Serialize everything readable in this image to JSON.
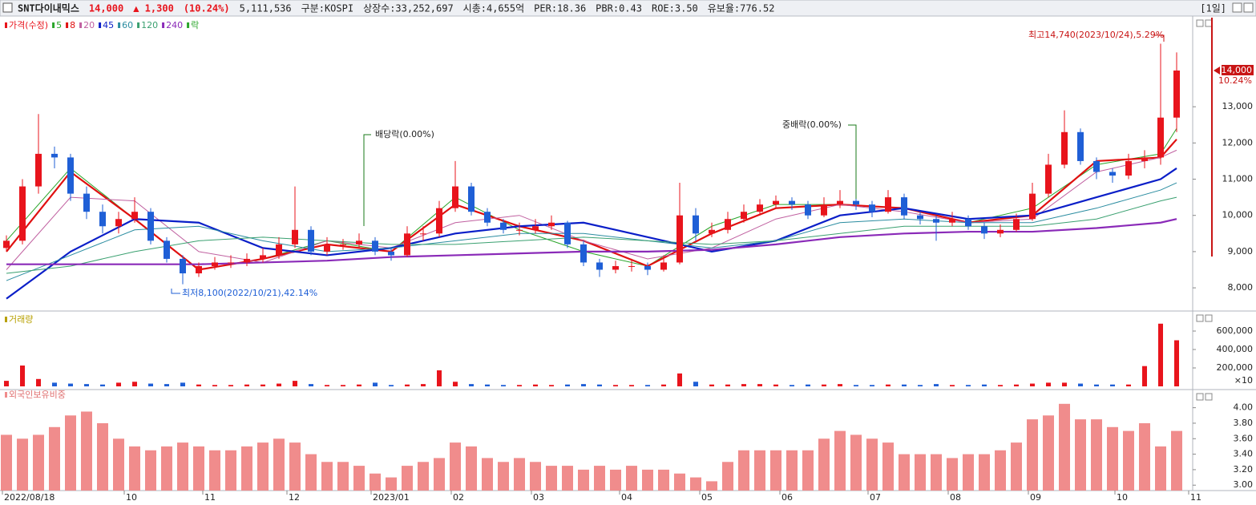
{
  "header": {
    "name": "SNT다이내믹스",
    "price": "14,000",
    "change": "▲ 1,300",
    "change_pct": "(10.24%)",
    "volume": "5,111,536",
    "market": "구분:KOSPI",
    "shares": "상장수:33,252,697",
    "cap": "시총:4,655억",
    "per": "PER:18.36",
    "pbr": "PBR:0.43",
    "roe": "ROE:3.50",
    "reserve": "유보율:776.52",
    "period": "[1일]"
  },
  "chart_data": {
    "type": "candlestick",
    "price_label": "가격(수정)",
    "ex_label": "락",
    "up_color": "#e8141c",
    "down_color": "#1f5fd6",
    "ylim": [
      7360,
      15460
    ],
    "yticks": [
      {
        "value": 8000,
        "label": "8,000"
      },
      {
        "value": 9000,
        "label": "9,000"
      },
      {
        "value": 10000,
        "label": "10,000"
      },
      {
        "value": 11000,
        "label": "11,000"
      },
      {
        "value": 12000,
        "label": "12,000"
      },
      {
        "value": 13000,
        "label": "13,000"
      }
    ],
    "xticks": [
      {
        "value": 0,
        "label": "2022/08/18"
      },
      {
        "value": 7.6,
        "label": "10"
      },
      {
        "value": 12.5,
        "label": "11"
      },
      {
        "value": 17.75,
        "label": "12"
      },
      {
        "value": 23,
        "label": "2023/01"
      },
      {
        "value": 28,
        "label": "02"
      },
      {
        "value": 33,
        "label": "03"
      },
      {
        "value": 38.5,
        "label": "04"
      },
      {
        "value": 43.5,
        "label": "05"
      },
      {
        "value": 48.5,
        "label": "06"
      },
      {
        "value": 54,
        "label": "07"
      },
      {
        "value": 59,
        "label": "08"
      },
      {
        "value": 64,
        "label": "09"
      },
      {
        "value": 69.4,
        "label": "10"
      },
      {
        "value": 74,
        "label": "11"
      }
    ],
    "open": [
      9100,
      9300,
      10800,
      11700,
      11600,
      10600,
      10100,
      9700,
      9900,
      10100,
      9300,
      8800,
      8400,
      8600,
      8700,
      8700,
      8800,
      8900,
      9200,
      9600,
      9000,
      9200,
      9200,
      9300,
      9000,
      8900,
      9500,
      9500,
      10200,
      10800,
      10100,
      9800,
      9600,
      9600,
      9700,
      9800,
      9200,
      8700,
      8500,
      8600,
      8600,
      8500,
      8700,
      10000,
      9500,
      9600,
      9900,
      10100,
      10300,
      10400,
      10300,
      10000,
      10300,
      10400,
      10300,
      10100,
      10500,
      10000,
      9900,
      9800,
      9900,
      9700,
      9500,
      9600,
      9900,
      10600,
      11400,
      12300,
      11500,
      11200,
      11100,
      11500,
      11600,
      12700
    ],
    "high": [
      9450,
      11000,
      12800,
      11900,
      11700,
      10800,
      10300,
      10100,
      10500,
      10200,
      9400,
      8900,
      8700,
      8850,
      8900,
      8950,
      9100,
      9400,
      10800,
      9700,
      9400,
      9350,
      9500,
      9400,
      9100,
      9700,
      9700,
      10400,
      11500,
      10900,
      10200,
      9900,
      9800,
      9900,
      10000,
      9850,
      9300,
      8800,
      8750,
      8800,
      8700,
      8900,
      10900,
      10200,
      9800,
      10100,
      10300,
      10450,
      10550,
      10500,
      10400,
      10500,
      10700,
      10500,
      10400,
      10700,
      10600,
      10100,
      10000,
      10100,
      10000,
      9800,
      9750,
      10050,
      10900,
      11700,
      12900,
      12400,
      11600,
      11300,
      11700,
      11800,
      14740,
      14500
    ],
    "low": [
      9000,
      9200,
      10600,
      11300,
      10400,
      9900,
      9500,
      9500,
      9800,
      9200,
      8700,
      8100,
      8300,
      8500,
      8550,
      8600,
      8700,
      8800,
      9100,
      8900,
      8900,
      9050,
      9100,
      8900,
      8750,
      8850,
      9300,
      9400,
      10100,
      10000,
      9700,
      9500,
      9450,
      9500,
      9600,
      9100,
      8600,
      8300,
      8400,
      8450,
      8350,
      8450,
      8650,
      9300,
      9400,
      9500,
      9800,
      10000,
      10200,
      10150,
      9900,
      9950,
      10200,
      10150,
      9950,
      10050,
      9900,
      9750,
      9300,
      9700,
      9600,
      9350,
      9400,
      9550,
      9850,
      10500,
      11300,
      11400,
      11000,
      10900,
      11000,
      11300,
      11400,
      12300
    ],
    "close": [
      9300,
      10800,
      11700,
      11600,
      10600,
      10100,
      9700,
      9900,
      10100,
      9300,
      8800,
      8400,
      8600,
      8700,
      8700,
      8800,
      8900,
      9200,
      9600,
      9000,
      9200,
      9200,
      9300,
      9000,
      8900,
      9500,
      9500,
      10200,
      10800,
      10100,
      9800,
      9600,
      9600,
      9700,
      9800,
      9200,
      8700,
      8500,
      8600,
      8600,
      8500,
      8700,
      10000,
      9500,
      9600,
      9900,
      10100,
      10300,
      10400,
      10300,
      10000,
      10300,
      10400,
      10300,
      10100,
      10500,
      10000,
      9900,
      9800,
      9900,
      9700,
      9500,
      9600,
      9900,
      10600,
      11400,
      12300,
      11500,
      11200,
      11100,
      11500,
      11600,
      12700,
      14000
    ],
    "ma_x": [
      0,
      4,
      8,
      12,
      16,
      20,
      24,
      28,
      32,
      36,
      40,
      44,
      48,
      52,
      56,
      60,
      64,
      68,
      72,
      73
    ],
    "series": [
      {
        "name": "5",
        "color": "#2aa52a",
        "width": 1,
        "values": [
          9300,
          11300,
          9900,
          8500,
          8800,
          9300,
          9000,
          10500,
          9600,
          9000,
          8600,
          9700,
          10300,
          10300,
          10200,
          9800,
          10200,
          11400,
          11700,
          12400
        ]
      },
      {
        "name": "8",
        "color": "#e01010",
        "width": 2.2,
        "values": [
          9000,
          11200,
          9900,
          8500,
          8800,
          9200,
          9000,
          10300,
          9700,
          9300,
          8600,
          9500,
          10200,
          10300,
          10200,
          9800,
          10000,
          11500,
          11600,
          12100
        ]
      },
      {
        "name": "20",
        "color": "#c060a0",
        "width": 1,
        "values": [
          8500,
          10500,
          10400,
          9000,
          8700,
          9300,
          9100,
          9800,
          10000,
          9300,
          8800,
          9100,
          9900,
          10300,
          10100,
          9800,
          9900,
          11200,
          11600,
          11800
        ]
      },
      {
        "name": "45",
        "color": "#0a1ec8",
        "width": 2.2,
        "values": [
          7700,
          9000,
          9900,
          9800,
          9100,
          8900,
          9100,
          9500,
          9700,
          9800,
          9400,
          9000,
          9300,
          10000,
          10200,
          9900,
          10000,
          10500,
          11000,
          11300
        ]
      },
      {
        "name": "60",
        "color": "#2a8ca0",
        "width": 1,
        "values": [
          8200,
          8900,
          9600,
          9700,
          9300,
          9000,
          9100,
          9300,
          9500,
          9500,
          9300,
          9100,
          9300,
          9800,
          9900,
          9800,
          9800,
          10200,
          10700,
          10900
        ]
      },
      {
        "name": "120",
        "color": "#3aa070",
        "width": 1,
        "values": [
          8400,
          8600,
          9000,
          9300,
          9400,
          9300,
          9200,
          9200,
          9300,
          9400,
          9300,
          9200,
          9300,
          9500,
          9700,
          9700,
          9700,
          9900,
          10400,
          10500
        ]
      },
      {
        "name": "240",
        "color": "#8a2ab8",
        "width": 2.2,
        "values": [
          8650,
          8650,
          8650,
          8650,
          8700,
          8750,
          8850,
          8900,
          8950,
          9000,
          9000,
          9050,
          9200,
          9400,
          9500,
          9550,
          9550,
          9650,
          9800,
          9900
        ]
      }
    ],
    "annotations": [
      "최고14,740(2023/10/24),5.29%",
      "최저8,100(2022/10/21),42.14%",
      "배당락(0.00%)",
      "중배락(0.00%)"
    ],
    "price_marker": {
      "label": "14,000",
      "change": "10.24%"
    },
    "volume": {
      "title": "거래량",
      "unit": "×10",
      "ylim": [
        0,
        713000
      ],
      "yticks": [
        {
          "value": 200000,
          "label": "200,000"
        },
        {
          "value": 400000,
          "label": "400,000"
        },
        {
          "value": 600000,
          "label": "600,000"
        }
      ],
      "values": [
        60000,
        226000,
        80000,
        40000,
        30000,
        25000,
        20000,
        40000,
        50000,
        30000,
        25000,
        40000,
        20000,
        15000,
        15000,
        20000,
        20000,
        30000,
        60000,
        25000,
        15000,
        15000,
        20000,
        40000,
        15000,
        20000,
        25000,
        174000,
        50000,
        25000,
        20000,
        15000,
        15000,
        20000,
        15000,
        20000,
        25000,
        20000,
        15000,
        15000,
        15000,
        20000,
        140000,
        50000,
        20000,
        20000,
        25000,
        25000,
        20000,
        15000,
        20000,
        20000,
        25000,
        15000,
        15000,
        20000,
        20000,
        15000,
        25000,
        15000,
        15000,
        20000,
        15000,
        20000,
        30000,
        40000,
        40000,
        30000,
        20000,
        20000,
        20000,
        220000,
        680000,
        500000
      ]
    },
    "foreign": {
      "title": "외국인보유비중",
      "color": "#f08c8c",
      "ylim": [
        2.93,
        4.11
      ],
      "yticks": [
        {
          "value": 3,
          "label": "3.00"
        },
        {
          "value": 3.2,
          "label": "3.20"
        },
        {
          "value": 3.4,
          "label": "3.40"
        },
        {
          "value": 3.6,
          "label": "3.60"
        },
        {
          "value": 3.8,
          "label": "3.80"
        },
        {
          "value": 4,
          "label": "4.00"
        }
      ],
      "values": [
        3.65,
        3.6,
        3.65,
        3.75,
        3.9,
        3.95,
        3.8,
        3.6,
        3.5,
        3.45,
        3.5,
        3.55,
        3.5,
        3.45,
        3.45,
        3.5,
        3.55,
        3.6,
        3.55,
        3.4,
        3.3,
        3.3,
        3.25,
        3.15,
        3.1,
        3.25,
        3.3,
        3.35,
        3.55,
        3.5,
        3.35,
        3.3,
        3.35,
        3.3,
        3.25,
        3.25,
        3.2,
        3.25,
        3.2,
        3.25,
        3.2,
        3.2,
        3.15,
        3.1,
        3.05,
        3.3,
        3.45,
        3.45,
        3.45,
        3.45,
        3.45,
        3.6,
        3.7,
        3.65,
        3.6,
        3.55,
        3.4,
        3.4,
        3.4,
        3.35,
        3.4,
        3.4,
        3.45,
        3.55,
        3.85,
        3.9,
        4.05,
        3.85,
        3.85,
        3.75,
        3.7,
        3.8,
        3.5,
        3.7
      ]
    }
  }
}
